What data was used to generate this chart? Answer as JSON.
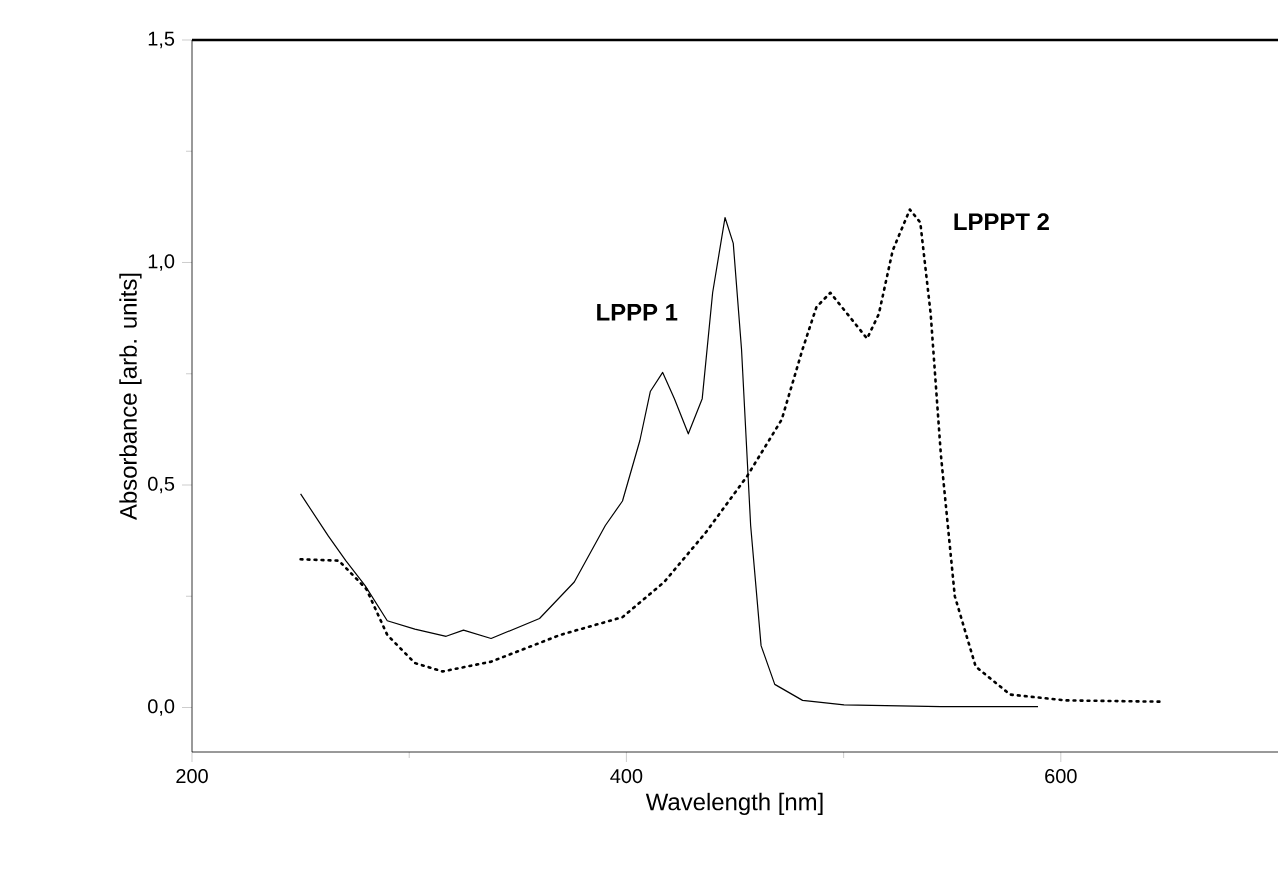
{
  "chart_data": {
    "type": "line",
    "xlabel": "Wavelength [nm]",
    "ylabel": "Absorbance [arb. units]",
    "xlim": [
      200,
      700
    ],
    "xticks": [
      200,
      400,
      600
    ],
    "ylim": [
      -0.1,
      1.5
    ],
    "yticks": [
      {
        "value": 0,
        "label": "0,0"
      },
      {
        "value": 0.5,
        "label": "0,5"
      },
      {
        "value": 1,
        "label": "1,0"
      },
      {
        "value": 1.5,
        "label": "1,5"
      }
    ],
    "grid": false,
    "legend": false,
    "marker": "none",
    "series": [
      {
        "name": "LPPP 1",
        "color": "#000000",
        "line_style": "solid",
        "x": [
          250,
          262.8,
          270.8,
          279.7,
          289.9,
          302.6,
          317,
          325,
          337.7,
          360,
          376,
          390.3,
          398.2,
          406.2,
          411,
          416.7,
          422.1,
          428.5,
          434.9,
          439.7,
          445.4,
          449.2,
          453,
          457.2,
          462,
          468.3,
          481.1,
          500.2,
          544.8,
          589.5
        ],
        "values": [
          0.48,
          0.385,
          0.33,
          0.274,
          0.195,
          0.176,
          0.16,
          0.174,
          0.155,
          0.2,
          0.282,
          0.409,
          0.464,
          0.6,
          0.71,
          0.753,
          0.694,
          0.615,
          0.694,
          0.932,
          1.101,
          1.043,
          0.805,
          0.409,
          0.139,
          0.052,
          0.016,
          0.006,
          0.002,
          0.002
        ]
      },
      {
        "name": "LPPPT 2",
        "color": "#000000",
        "line_style": "dotted",
        "x": [
          250,
          267.6,
          280.3,
          289.9,
          302.6,
          315.4,
          337.7,
          369.5,
          398.2,
          417.4,
          436.5,
          455.6,
          471.5,
          481.1,
          487.5,
          493.9,
          501.8,
          510.8,
          516.2,
          522.6,
          530.5,
          535.3,
          540.1,
          544.8,
          551.2,
          560.8,
          576.7,
          602.2,
          646.8
        ],
        "values": [
          0.333,
          0.33,
          0.266,
          0.163,
          0.1,
          0.081,
          0.103,
          0.163,
          0.203,
          0.282,
          0.393,
          0.52,
          0.647,
          0.805,
          0.9,
          0.932,
          0.884,
          0.829,
          0.884,
          1.027,
          1.119,
          1.09,
          0.884,
          0.567,
          0.25,
          0.092,
          0.029,
          0.016,
          0.013
        ]
      }
    ]
  }
}
